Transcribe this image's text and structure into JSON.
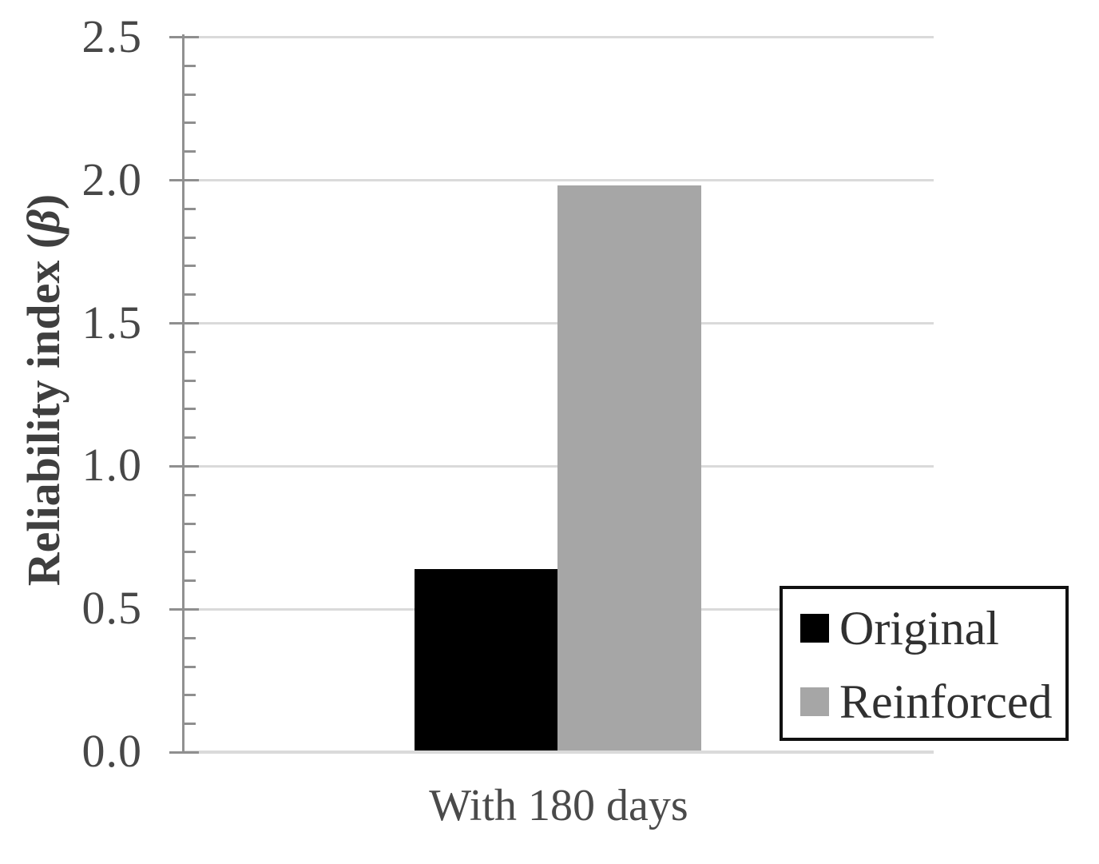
{
  "chart_data": {
    "type": "bar",
    "title": "",
    "categories": [
      "With 180 days"
    ],
    "series": [
      {
        "name": "Original",
        "color": "#000000",
        "values": [
          0.64
        ]
      },
      {
        "name": "Reinforced",
        "color": "#a6a6a6",
        "values": [
          1.98
        ]
      }
    ],
    "xlabel": "",
    "ylabel": "Reliability index (β)",
    "ylabel_parts": {
      "prefix": "Reliability index (",
      "beta": "β",
      "suffix": ")"
    },
    "ylim": [
      0,
      2.5
    ],
    "ytick_step": 0.5,
    "minor_tick_step": 0.1,
    "ytick_labels": [
      "2.5",
      "2.0",
      "1.5",
      "1.0",
      "0.5",
      "0.0"
    ],
    "grid": true,
    "legend_position": "bottom-right",
    "colors": {
      "gridline": "#dadada",
      "axis": "#919191",
      "tick": "#8f8f8f",
      "legend_border": "#111111"
    }
  }
}
